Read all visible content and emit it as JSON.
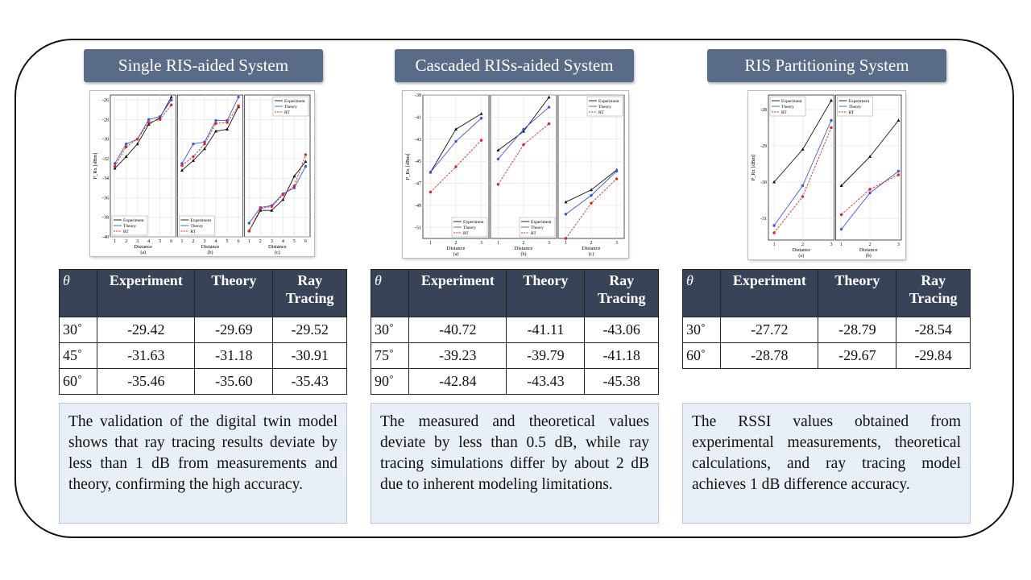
{
  "panels": [
    {
      "title": "Single RIS-aided System",
      "charts": [
        {
          "type": "line",
          "ylabel": "P_Rx [dBm]",
          "xlabel": "Distance",
          "caption": "(a)",
          "x": [
            1,
            2,
            3,
            4,
            5,
            6
          ],
          "xlim": [
            0.6,
            6.4
          ],
          "xticks": [
            1,
            2,
            3,
            4,
            5,
            6
          ],
          "ylim": [
            -40,
            -25.5
          ],
          "yticks": [
            -26,
            -28,
            -30,
            -32,
            -34,
            -36,
            -38,
            -40
          ],
          "grid": true,
          "legend": "lower left",
          "series": [
            {
              "name": "Experiment",
              "color": "#111111",
              "marker": "triangle",
              "dash": false,
              "values": [
                -33.0,
                -31.8,
                -30.5,
                -28.5,
                -27.8,
                -25.7
              ]
            },
            {
              "name": "Theory",
              "color": "#3a56e0",
              "marker": "circle",
              "dash": false,
              "values": [
                -32.5,
                -30.5,
                -30.0,
                -28.0,
                -27.7,
                -26.0
              ]
            },
            {
              "name": "RT",
              "color": "#e02424",
              "marker": "circle",
              "dash": true,
              "values": [
                -32.8,
                -30.8,
                -30.0,
                -28.3,
                -28.0,
                -26.5
              ]
            }
          ]
        },
        {
          "type": "line",
          "xlabel": "Distance",
          "caption": "(b)",
          "x": [
            1,
            2,
            3,
            4,
            5,
            6
          ],
          "xlim": [
            0.6,
            6.4
          ],
          "xticks": [
            1,
            2,
            3,
            4,
            5,
            6
          ],
          "ylim": [
            -40,
            -25.5
          ],
          "yticks": [
            -26,
            -28,
            -30,
            -32,
            -34,
            -36,
            -38,
            -40
          ],
          "grid": true,
          "legend": "lower left",
          "series": [
            {
              "name": "Experiment",
              "color": "#111111",
              "marker": "triangle",
              "dash": false,
              "values": [
                -33.2,
                -32.2,
                -31.0,
                -29.2,
                -29.0,
                -26.7
              ]
            },
            {
              "name": "Theory",
              "color": "#3a56e0",
              "marker": "circle",
              "dash": false,
              "values": [
                -32.5,
                -30.5,
                -30.3,
                -28.1,
                -28.1,
                -25.7
              ]
            },
            {
              "name": "RT",
              "color": "#e02424",
              "marker": "circle",
              "dash": true,
              "values": [
                -32.7,
                -31.8,
                -30.5,
                -28.4,
                -28.3,
                -26.6
              ]
            }
          ]
        },
        {
          "type": "line",
          "xlabel": "Distance",
          "caption": "(c)",
          "x": [
            1,
            2,
            3,
            4,
            5,
            6
          ],
          "xlim": [
            0.6,
            6.4
          ],
          "xticks": [
            1,
            2,
            3,
            4,
            5,
            6
          ],
          "ylim": [
            -40,
            -25.5
          ],
          "yticks": [
            -26,
            -28,
            -30,
            -32,
            -34,
            -36,
            -38,
            -40
          ],
          "grid": true,
          "legend": "upper right",
          "series": [
            {
              "name": "Experiment",
              "color": "#111111",
              "marker": "triangle",
              "dash": false,
              "values": [
                -39.4,
                -37.3,
                -37.3,
                -36.2,
                -33.8,
                -32.3
              ]
            },
            {
              "name": "Theory",
              "color": "#3a56e0",
              "marker": "circle",
              "dash": false,
              "values": [
                -38.6,
                -37.0,
                -36.8,
                -35.6,
                -35.0,
                -32.8
              ]
            },
            {
              "name": "RT",
              "color": "#e02424",
              "marker": "circle",
              "dash": true,
              "values": [
                -39.4,
                -37.1,
                -36.9,
                -35.7,
                -34.8,
                -31.6
              ]
            }
          ]
        }
      ],
      "table": {
        "header": [
          "θ",
          "Experiment",
          "Theory",
          "Ray Tracing"
        ],
        "rows": [
          [
            "30˚",
            "-29.42",
            "-29.69",
            "-29.52"
          ],
          [
            "45˚",
            "-31.63",
            "-31.18",
            "-30.91"
          ],
          [
            "60˚",
            "-35.46",
            "-35.60",
            "-35.43"
          ]
        ]
      },
      "text": "The validation of the digital twin model shows that ray tracing results deviate by less than 1 dB from measurements and theory, confirming the high accuracy."
    },
    {
      "title": "Cascaded RISs-aided System",
      "charts": [
        {
          "type": "line",
          "ylabel": "P_Rx [dBm]",
          "xlabel": "Distance",
          "caption": "(a)",
          "x": [
            1,
            2,
            3
          ],
          "xlim": [
            0.7,
            3.3
          ],
          "xticks": [
            1,
            2,
            3
          ],
          "ylim": [
            -52,
            -39
          ],
          "yticks": [
            -39,
            -41,
            -43,
            -45,
            -47,
            -49,
            -51
          ],
          "grid": true,
          "legend": "lower right",
          "series": [
            {
              "name": "Experiment",
              "color": "#111111",
              "marker": "triangle",
              "dash": false,
              "values": [
                -46.0,
                -42.1,
                -40.7
              ]
            },
            {
              "name": "Theory",
              "color": "#3a56e0",
              "marker": "circle",
              "dash": false,
              "values": [
                -46.0,
                -43.2,
                -41.1
              ]
            },
            {
              "name": "RT",
              "color": "#e02424",
              "marker": "circle",
              "dash": true,
              "values": [
                -47.8,
                -45.5,
                -43.1
              ]
            }
          ]
        },
        {
          "type": "line",
          "xlabel": "Distance",
          "caption": "(b)",
          "x": [
            1,
            2,
            3
          ],
          "xlim": [
            0.7,
            3.3
          ],
          "xticks": [
            1,
            2,
            3
          ],
          "ylim": [
            -52,
            -39
          ],
          "yticks": [
            -39,
            -41,
            -43,
            -45,
            -47,
            -49,
            -51
          ],
          "grid": true,
          "legend": "lower right",
          "series": [
            {
              "name": "Experiment",
              "color": "#111111",
              "marker": "triangle",
              "dash": false,
              "values": [
                -44.0,
                -42.3,
                -39.2
              ]
            },
            {
              "name": "Theory",
              "color": "#3a56e0",
              "marker": "circle",
              "dash": false,
              "values": [
                -44.8,
                -42.1,
                -40.1
              ]
            },
            {
              "name": "RT",
              "color": "#e02424",
              "marker": "circle",
              "dash": true,
              "values": [
                -47.1,
                -43.5,
                -41.6
              ]
            }
          ]
        },
        {
          "type": "line",
          "xlabel": "Distance",
          "caption": "(c)",
          "x": [
            1,
            2,
            3
          ],
          "xlim": [
            0.7,
            3.3
          ],
          "xticks": [
            1,
            2,
            3
          ],
          "ylim": [
            -52,
            -39
          ],
          "yticks": [
            -39,
            -41,
            -43,
            -45,
            -47,
            -49,
            -51
          ],
          "grid": true,
          "legend": "upper right",
          "series": [
            {
              "name": "Experiment",
              "color": "#111111",
              "marker": "triangle",
              "dash": false,
              "values": [
                -48.7,
                -47.6,
                -45.8
              ]
            },
            {
              "name": "Theory",
              "color": "#3a56e0",
              "marker": "circle",
              "dash": false,
              "values": [
                -49.8,
                -48.1,
                -45.9
              ]
            },
            {
              "name": "RT",
              "color": "#e02424",
              "marker": "circle",
              "dash": true,
              "values": [
                -52.0,
                -48.8,
                -46.6
              ]
            }
          ]
        }
      ],
      "table": {
        "header": [
          "θ",
          "Experiment",
          "Theory",
          "Ray Tracing"
        ],
        "rows": [
          [
            "30˚",
            "-40.72",
            "-41.11",
            "-43.06"
          ],
          [
            "75˚",
            "-39.23",
            "-39.79",
            "-41.18"
          ],
          [
            "90˚",
            "-42.84",
            "-43.43",
            "-45.38"
          ]
        ]
      },
      "text": "The measured and theoretical values deviate by less than 0.5 dB, while ray tracing simulations differ by about 2 dB due to inherent modeling limitations."
    },
    {
      "title": "RIS Partitioning System",
      "charts": [
        {
          "type": "line",
          "ylabel": "P_Rx [dBm]",
          "xlabel": "Distance",
          "caption": "(a)",
          "x": [
            1,
            2,
            3
          ],
          "xlim": [
            0.8,
            3.1
          ],
          "xticks": [
            1,
            2,
            3
          ],
          "ylim": [
            -31.6,
            -27.6
          ],
          "yticks": [
            -28,
            -29,
            -30,
            -31
          ],
          "grid": true,
          "legend": "upper left",
          "series": [
            {
              "name": "Experiment",
              "color": "#111111",
              "marker": "triangle",
              "dash": false,
              "values": [
                -30.0,
                -29.1,
                -27.75
              ]
            },
            {
              "name": "Theory",
              "color": "#3a56e0",
              "marker": "circle",
              "dash": false,
              "values": [
                -31.2,
                -30.1,
                -28.3
              ]
            },
            {
              "name": "RT",
              "color": "#e02424",
              "marker": "circle",
              "dash": true,
              "values": [
                -31.4,
                -30.4,
                -28.5
              ]
            }
          ]
        },
        {
          "type": "line",
          "xlabel": "Distance",
          "caption": "(b)",
          "x": [
            1,
            2,
            3
          ],
          "xlim": [
            0.8,
            3.1
          ],
          "xticks": [
            1,
            2,
            3
          ],
          "ylim": [
            -31.6,
            -27.6
          ],
          "yticks": [
            -28,
            -29,
            -30,
            -31
          ],
          "grid": true,
          "legend": "upper left",
          "series": [
            {
              "name": "Experiment",
              "color": "#111111",
              "marker": "triangle",
              "dash": false,
              "values": [
                -30.1,
                -29.3,
                -28.3
              ]
            },
            {
              "name": "Theory",
              "color": "#3a56e0",
              "marker": "circle",
              "dash": false,
              "values": [
                -31.3,
                -30.3,
                -29.7
              ]
            },
            {
              "name": "RT",
              "color": "#e02424",
              "marker": "circle",
              "dash": true,
              "values": [
                -30.9,
                -30.2,
                -29.8
              ]
            }
          ]
        }
      ],
      "table": {
        "header": [
          "θ",
          "Experiment",
          "Theory",
          "Ray Tracing"
        ],
        "rows": [
          [
            "30˚",
            "-27.72",
            "-28.79",
            "-28.54"
          ],
          [
            "60˚",
            "-28.78",
            "-29.67",
            "-29.84"
          ]
        ]
      },
      "text": "The RSSI values obtained from experimental measurements, theoretical calculations, and ray tracing model achieves 1 dB difference accuracy."
    }
  ]
}
